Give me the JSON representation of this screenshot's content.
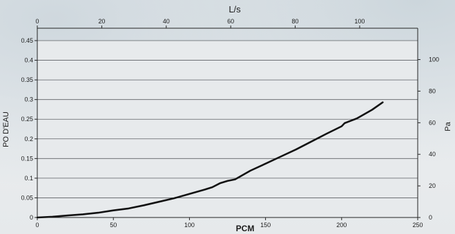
{
  "chart_data": {
    "type": "line",
    "title": "",
    "xlabel": "PCM",
    "ylabel": "PO D'EAU",
    "x2label": "L/s",
    "y2label": "Pa",
    "xlim": [
      0,
      250
    ],
    "ylim": [
      0,
      0.45
    ],
    "x2lim": [
      0,
      118
    ],
    "y2lim": [
      0,
      112
    ],
    "x_ticks": [
      "0",
      "50",
      "100",
      "150",
      "200",
      "250"
    ],
    "y_ticks": [
      "0",
      "0.05",
      "0.1",
      "0.15",
      "0.2",
      "0.25",
      "0.3",
      "0.35",
      "0.4",
      "0.45"
    ],
    "x2_ticks": [
      "0",
      "20",
      "40",
      "60",
      "80",
      "100"
    ],
    "y2_ticks": [
      "0",
      "20",
      "40",
      "60",
      "80",
      "100"
    ],
    "grid": true,
    "legend": "none",
    "line_color": "#111111",
    "series": [
      {
        "x": [
          0,
          10,
          20,
          30,
          40,
          50,
          60,
          70,
          80,
          90,
          100,
          110,
          115,
          120,
          125,
          130,
          140,
          150,
          160,
          170,
          180,
          190,
          200,
          202,
          210,
          220,
          227
        ],
        "values": [
          0,
          0.002,
          0.005,
          0.008,
          0.012,
          0.018,
          0.023,
          0.031,
          0.04,
          0.049,
          0.06,
          0.071,
          0.077,
          0.087,
          0.093,
          0.097,
          0.119,
          0.137,
          0.155,
          0.173,
          0.193,
          0.213,
          0.232,
          0.24,
          0.252,
          0.274,
          0.293
        ]
      }
    ]
  }
}
